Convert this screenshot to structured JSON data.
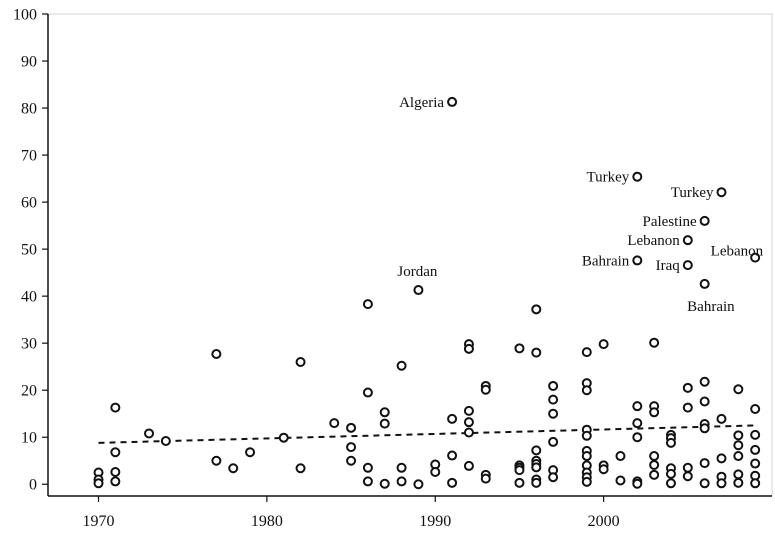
{
  "chart_data": {
    "type": "scatter",
    "title": "",
    "xlabel": "",
    "ylabel": "",
    "xlim": [
      1967,
      2010
    ],
    "ylim": [
      -2.5,
      100
    ],
    "x_ticks": [
      1970,
      1980,
      1990,
      2000
    ],
    "y_ticks": [
      0,
      10,
      20,
      30,
      40,
      50,
      60,
      70,
      80,
      90,
      100
    ],
    "grid": false,
    "legend": "none",
    "marker_color": "#111111",
    "trend_line": {
      "style": "dashed",
      "points": [
        [
          1970,
          8.8
        ],
        [
          2009,
          12.5
        ]
      ]
    },
    "points": [
      [
        1970,
        2.5
      ],
      [
        1970,
        1.0
      ],
      [
        1970,
        0.2
      ],
      [
        1971,
        16.3
      ],
      [
        1971,
        6.8
      ],
      [
        1971,
        2.6
      ],
      [
        1971,
        0.6
      ],
      [
        1973,
        10.8
      ],
      [
        1974,
        9.2
      ],
      [
        1977,
        27.7
      ],
      [
        1977,
        5.0
      ],
      [
        1978,
        3.4
      ],
      [
        1979,
        6.8
      ],
      [
        1981,
        9.9
      ],
      [
        1982,
        26.0
      ],
      [
        1982,
        3.4
      ],
      [
        1984,
        13.0
      ],
      [
        1985,
        12.0
      ],
      [
        1985,
        7.9
      ],
      [
        1985,
        5.0
      ],
      [
        1986,
        38.3
      ],
      [
        1986,
        19.5
      ],
      [
        1986,
        3.5
      ],
      [
        1986,
        0.6
      ],
      [
        1987,
        15.3
      ],
      [
        1987,
        12.9
      ],
      [
        1987,
        0.1
      ],
      [
        1988,
        25.2
      ],
      [
        1988,
        3.5
      ],
      [
        1988,
        0.6
      ],
      [
        1989,
        41.3
      ],
      [
        1989,
        0.0
      ],
      [
        1990,
        4.2
      ],
      [
        1990,
        2.6
      ],
      [
        1991,
        81.3
      ],
      [
        1991,
        13.9
      ],
      [
        1991,
        6.1
      ],
      [
        1991,
        0.3
      ],
      [
        1992,
        29.8
      ],
      [
        1992,
        28.8
      ],
      [
        1992,
        15.6
      ],
      [
        1992,
        13.2
      ],
      [
        1992,
        11.0
      ],
      [
        1992,
        3.9
      ],
      [
        1993,
        20.9
      ],
      [
        1993,
        20.1
      ],
      [
        1993,
        2.0
      ],
      [
        1993,
        1.2
      ],
      [
        1995,
        28.9
      ],
      [
        1995,
        4.0
      ],
      [
        1995,
        3.5
      ],
      [
        1995,
        3.0
      ],
      [
        1995,
        0.3
      ],
      [
        1996,
        37.2
      ],
      [
        1996,
        28.0
      ],
      [
        1996,
        7.2
      ],
      [
        1996,
        5.0
      ],
      [
        1996,
        4.3
      ],
      [
        1996,
        3.6
      ],
      [
        1996,
        1.0
      ],
      [
        1996,
        0.3
      ],
      [
        1997,
        20.9
      ],
      [
        1997,
        18.0
      ],
      [
        1997,
        15.0
      ],
      [
        1997,
        9.0
      ],
      [
        1997,
        3.0
      ],
      [
        1997,
        1.5
      ],
      [
        1999,
        28.1
      ],
      [
        1999,
        21.5
      ],
      [
        1999,
        20.0
      ],
      [
        1999,
        11.6
      ],
      [
        1999,
        10.3
      ],
      [
        1999,
        7.1
      ],
      [
        1999,
        6.0
      ],
      [
        1999,
        4.0
      ],
      [
        1999,
        2.5
      ],
      [
        1999,
        1.5
      ],
      [
        1999,
        0.5
      ],
      [
        2000,
        29.8
      ],
      [
        2000,
        4.0
      ],
      [
        2000,
        3.2
      ],
      [
        2001,
        6.0
      ],
      [
        2001,
        0.8
      ],
      [
        2002,
        65.4
      ],
      [
        2002,
        47.6
      ],
      [
        2002,
        16.6
      ],
      [
        2002,
        13.0
      ],
      [
        2002,
        10.0
      ],
      [
        2002,
        0.6
      ],
      [
        2002,
        0.1
      ],
      [
        2003,
        30.1
      ],
      [
        2003,
        16.6
      ],
      [
        2003,
        15.3
      ],
      [
        2003,
        6.0
      ],
      [
        2003,
        4.1
      ],
      [
        2003,
        2.0
      ],
      [
        2004,
        10.5
      ],
      [
        2004,
        9.8
      ],
      [
        2004,
        8.8
      ],
      [
        2004,
        3.4
      ],
      [
        2004,
        2.2
      ],
      [
        2004,
        0.2
      ],
      [
        2005,
        51.9
      ],
      [
        2005,
        46.6
      ],
      [
        2005,
        20.5
      ],
      [
        2005,
        16.3
      ],
      [
        2005,
        3.5
      ],
      [
        2005,
        1.7
      ],
      [
        2006,
        56.0
      ],
      [
        2006,
        42.6
      ],
      [
        2006,
        21.8
      ],
      [
        2006,
        17.6
      ],
      [
        2006,
        12.8
      ],
      [
        2006,
        11.9
      ],
      [
        2006,
        4.5
      ],
      [
        2006,
        0.2
      ],
      [
        2007,
        62.1
      ],
      [
        2007,
        13.9
      ],
      [
        2007,
        5.5
      ],
      [
        2007,
        1.6
      ],
      [
        2007,
        0.2
      ],
      [
        2008,
        20.2
      ],
      [
        2008,
        10.4
      ],
      [
        2008,
        8.3
      ],
      [
        2008,
        6.0
      ],
      [
        2008,
        2.1
      ],
      [
        2008,
        0.3
      ],
      [
        2009,
        48.2
      ],
      [
        2009,
        16.0
      ],
      [
        2009,
        10.5
      ],
      [
        2009,
        7.3
      ],
      [
        2009,
        4.4
      ],
      [
        2009,
        1.8
      ],
      [
        2009,
        0.2
      ]
    ],
    "annotations": [
      {
        "text": "Algeria",
        "x": 1991,
        "y": 81.3
      },
      {
        "text": "Turkey",
        "x": 2002,
        "y": 65.4
      },
      {
        "text": "Turkey",
        "x": 2007,
        "y": 62.1
      },
      {
        "text": "Palestine",
        "x": 2006,
        "y": 56.0
      },
      {
        "text": "Lebanon",
        "x": 2005,
        "y": 51.9
      },
      {
        "text": "Lebanon",
        "x": 2009,
        "y": 48.2
      },
      {
        "text": "Bahrain",
        "x": 2002,
        "y": 47.6
      },
      {
        "text": "Iraq",
        "x": 2005,
        "y": 46.6
      },
      {
        "text": "Bahrain",
        "x": 2006,
        "y": 42.6
      },
      {
        "text": "Jordan",
        "x": 1989,
        "y": 41.3
      }
    ]
  }
}
